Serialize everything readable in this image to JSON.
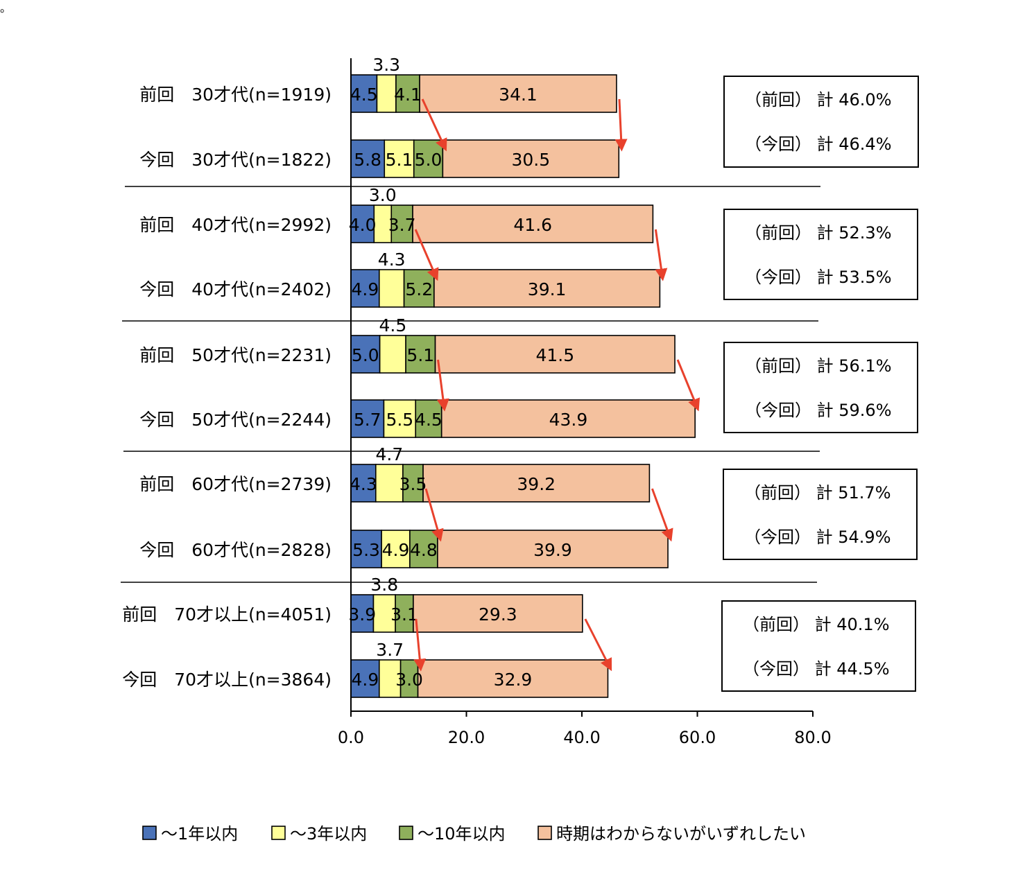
{
  "stray_mark": "。",
  "chart_data": {
    "type": "bar",
    "orientation": "horizontal",
    "stacked": true,
    "title": "",
    "xlabel": "",
    "ylabel": "",
    "xlim": [
      0,
      80
    ],
    "x_ticks": [
      "0.0",
      "20.0",
      "40.0",
      "60.0",
      "80.0"
    ],
    "grid": false,
    "legend_position": "bottom",
    "series": [
      {
        "name": "～1年以内",
        "color": "#4a72b8"
      },
      {
        "name": "～3年以内",
        "color": "#ffff99"
      },
      {
        "name": "～10年以内",
        "color": "#8fb05c"
      },
      {
        "name": "時期はわからないがいずれしたい",
        "color": "#f4c19e"
      }
    ],
    "arrow_color": "#e8412c",
    "groups": [
      {
        "rows": [
          {
            "label": "前回　30才代(n=1919)",
            "values": [
              4.5,
              3.3,
              4.1,
              34.1
            ],
            "value_labels": [
              "4.5",
              "3.3",
              "4.1",
              "34.1"
            ]
          },
          {
            "label": "今回　30才代(n=1822)",
            "values": [
              5.8,
              5.1,
              5.0,
              30.5
            ],
            "value_labels": [
              "5.8",
              "5.1",
              "5.0",
              "30.5"
            ]
          }
        ],
        "totals": [
          "（前回）  計 46.0%",
          "（今回）  計 46.4%"
        ]
      },
      {
        "rows": [
          {
            "label": "前回　40才代(n=2992)",
            "values": [
              4.0,
              3.0,
              3.7,
              41.6
            ],
            "value_labels": [
              "4.0",
              "3.0",
              "3.7",
              "41.6"
            ]
          },
          {
            "label": "今回　40才代(n=2402)",
            "values": [
              4.9,
              4.3,
              5.2,
              39.1
            ],
            "value_labels": [
              "4.9",
              "4.3",
              "5.2",
              "39.1"
            ]
          }
        ],
        "totals": [
          "（前回）  計 52.3%",
          "（今回）  計 53.5%"
        ]
      },
      {
        "rows": [
          {
            "label": "前回　50才代(n=2231)",
            "values": [
              5.0,
              4.5,
              5.1,
              41.5
            ],
            "value_labels": [
              "5.0",
              "4.5",
              "5.1",
              "41.5"
            ]
          },
          {
            "label": "今回　50才代(n=2244)",
            "values": [
              5.7,
              5.5,
              4.5,
              43.9
            ],
            "value_labels": [
              "5.7",
              "5.5",
              "4.5",
              "43.9"
            ]
          }
        ],
        "totals": [
          "（前回）  計 56.1%",
          "（今回）  計 59.6%"
        ]
      },
      {
        "rows": [
          {
            "label": "前回　60才代(n=2739)",
            "values": [
              4.3,
              4.7,
              3.5,
              39.2
            ],
            "value_labels": [
              "4.3",
              "4.7",
              "3.5",
              "39.2"
            ]
          },
          {
            "label": "今回　60才代(n=2828)",
            "values": [
              5.3,
              4.9,
              4.8,
              39.9
            ],
            "value_labels": [
              "5.3",
              "4.9",
              "4.8",
              "39.9"
            ]
          }
        ],
        "totals": [
          "（前回）  計 51.7%",
          "（今回）  計 54.9%"
        ]
      },
      {
        "rows": [
          {
            "label": "前回　70才以上(n=4051)",
            "values": [
              3.9,
              3.8,
              3.1,
              29.3
            ],
            "value_labels": [
              "3.9",
              "3.8",
              "3.1",
              "29.3"
            ]
          },
          {
            "label": "今回　70才以上(n=3864)",
            "values": [
              4.9,
              3.7,
              3.0,
              32.9
            ],
            "value_labels": [
              "4.9",
              "3.7",
              "3.0",
              "32.9"
            ]
          }
        ],
        "totals": [
          "（前回）  計 40.1%",
          "（今回）  計 44.5%"
        ]
      }
    ]
  }
}
